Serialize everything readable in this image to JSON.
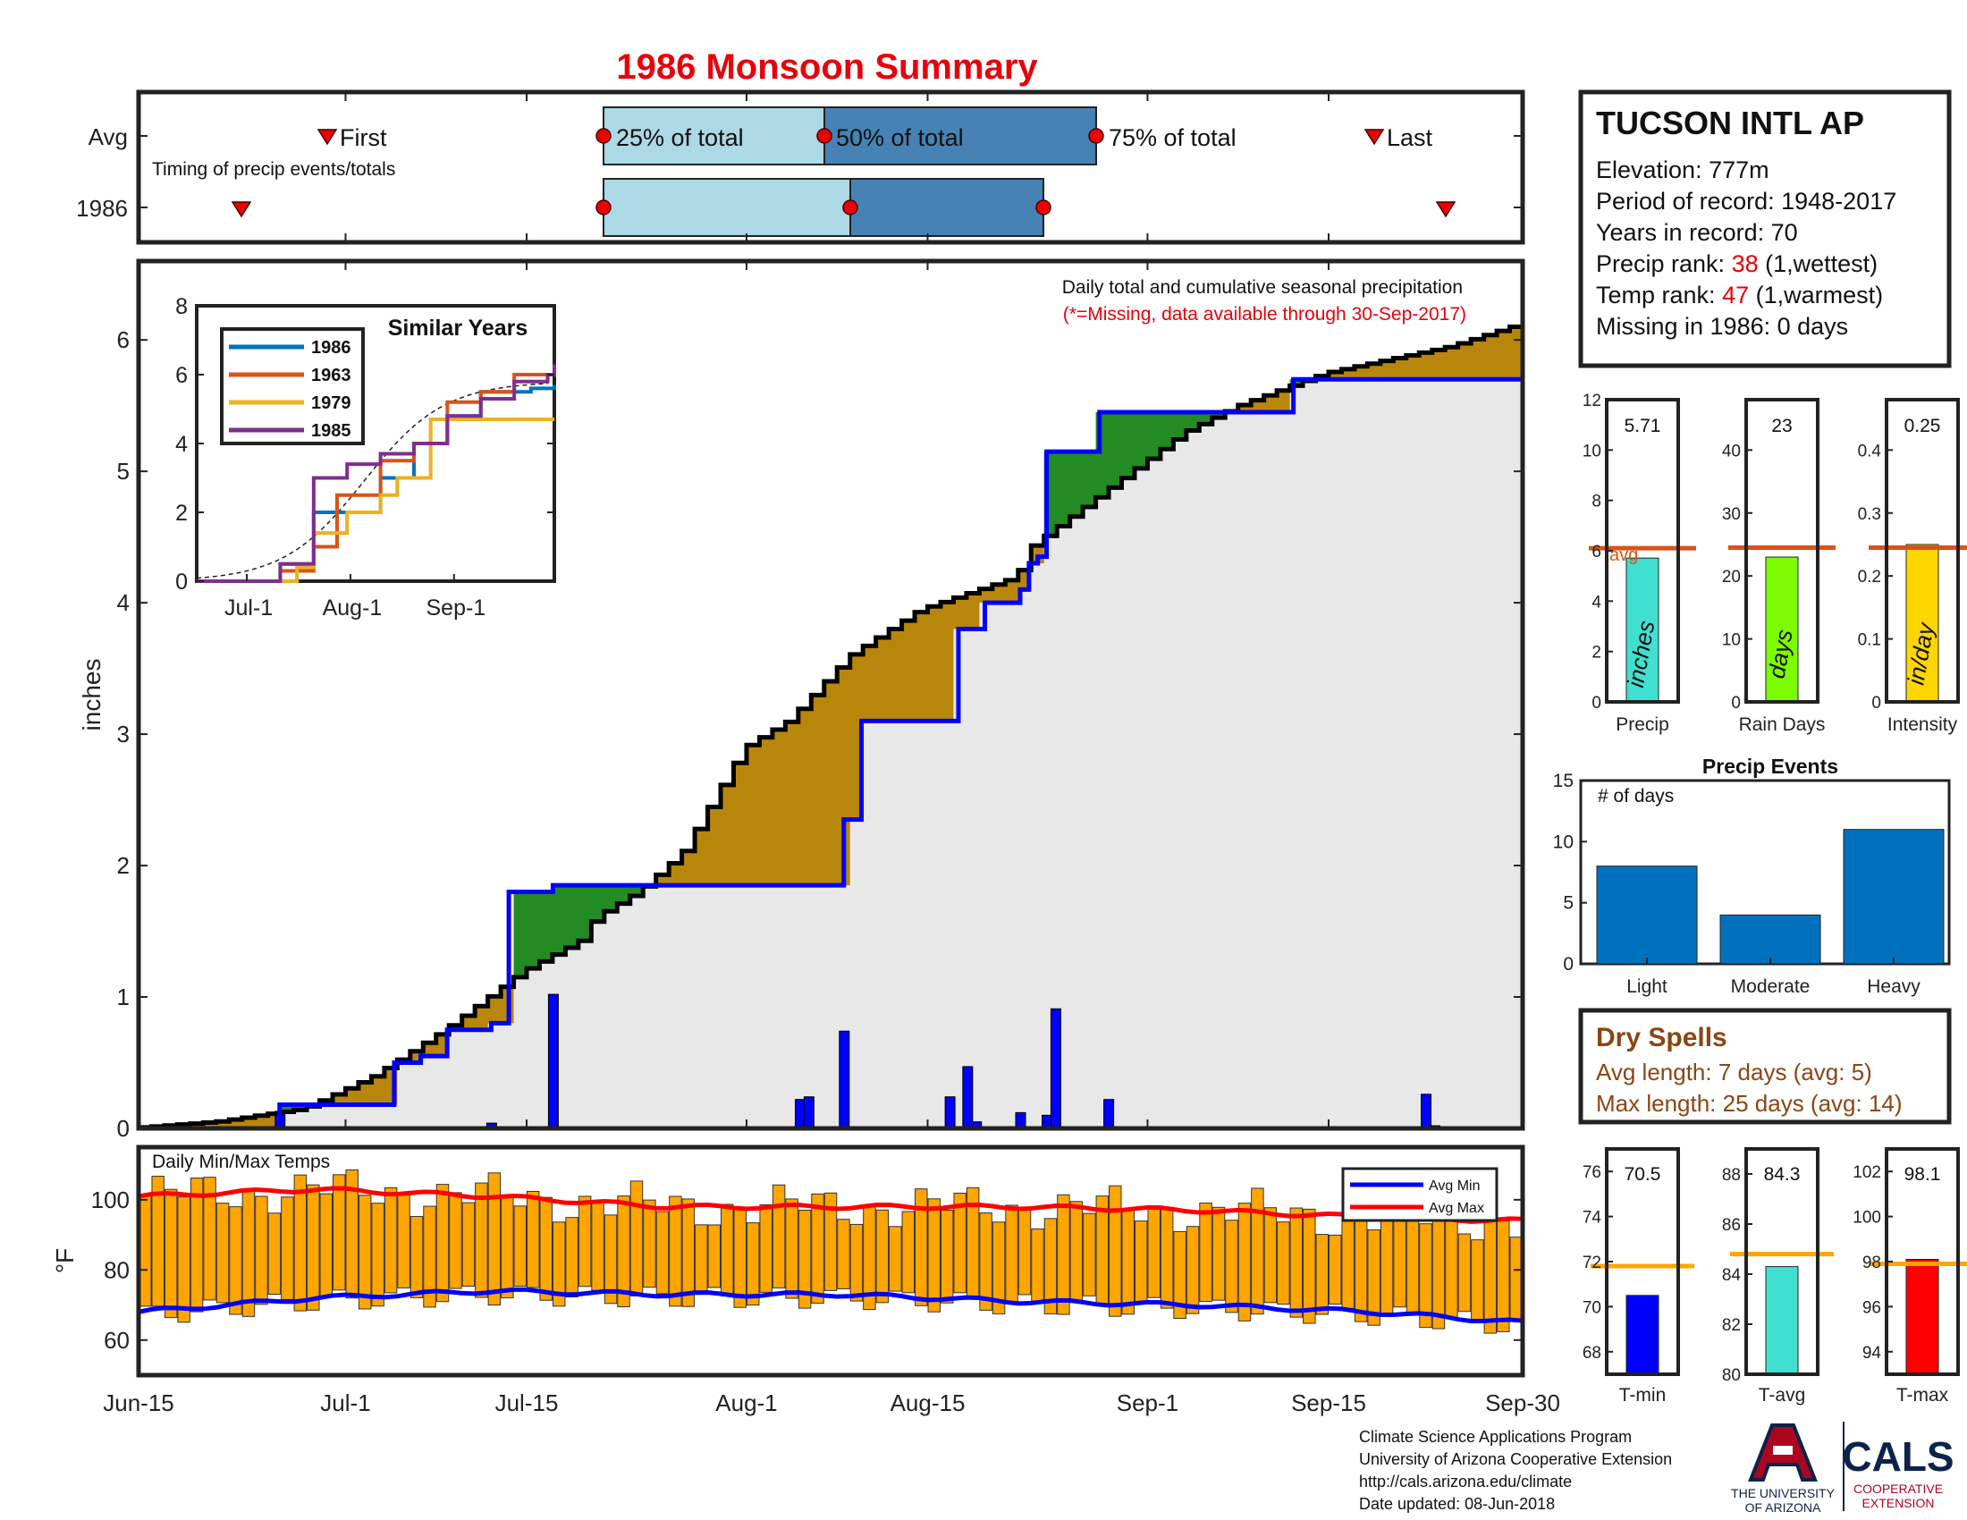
{
  "title": "1986 Monsoon Summary",
  "station": {
    "name": "TUCSON INTL AP",
    "elevation": "Elevation: 777m",
    "period": "Period of record: 1948-2017",
    "years": "Years in record: 70",
    "precip_rank_label": "Precip rank: ",
    "precip_rank_value": "38",
    "precip_rank_note": " (1,wettest)",
    "temp_rank_label": "Temp rank: ",
    "temp_rank_value": "47",
    "temp_rank_note": " (1,warmest)",
    "missing": "Missing in 1986: 0 days"
  },
  "timing": {
    "row_labels": [
      "Avg",
      "1986"
    ],
    "caption": "Timing of precip events/totals",
    "first_label": "First",
    "p25_label": "25% of total",
    "p50_label": "50% of total",
    "p75_label": "75% of total",
    "last_label": "Last"
  },
  "main": {
    "note": "Daily total and cumulative seasonal precipitation",
    "missing_note": "(*=Missing, data available through 30-Sep-2017)",
    "ylabel": "inches",
    "x_ticks": [
      "Jun-15",
      "Jul-1",
      "Jul-15",
      "Aug-1",
      "Aug-15",
      "Sep-1",
      "Sep-15",
      "Sep-30"
    ],
    "y_ticks": [
      "0",
      "1",
      "2",
      "3",
      "4",
      "5",
      "6"
    ]
  },
  "similar": {
    "title": "Similar Years",
    "legend": [
      "1986",
      "1963",
      "1979",
      "1985"
    ],
    "x_ticks": [
      "Jul-1",
      "Aug-1",
      "Sep-1"
    ],
    "y_ticks": [
      "0",
      "2",
      "4",
      "6",
      "8"
    ]
  },
  "stats": {
    "precip": {
      "value": "5.71",
      "label": "Precip",
      "unit": "inches",
      "avg_text": "avg",
      "ticks": [
        "0",
        "2",
        "4",
        "6",
        "8",
        "10",
        "12"
      ]
    },
    "raindays": {
      "value": "23",
      "label": "Rain Days",
      "unit": "days",
      "ticks": [
        "0",
        "10",
        "20",
        "30",
        "40"
      ]
    },
    "intensity": {
      "value": "0.25",
      "label": "Intensity",
      "unit": "in/day",
      "ticks": [
        "0",
        "0.1",
        "0.2",
        "0.3",
        "0.4"
      ]
    }
  },
  "events": {
    "title": "Precip Events",
    "ylabel": "# of days",
    "y_ticks": [
      "0",
      "5",
      "10",
      "15"
    ]
  },
  "dry": {
    "title": "Dry Spells",
    "avg": "Avg length: 7 days (avg: 5)",
    "max": "Max length: 25 days (avg: 14)"
  },
  "temps": {
    "label": "Daily Min/Max Temps",
    "ylabel": "°F",
    "y_ticks": [
      "60",
      "80",
      "100"
    ],
    "legend_min": "Avg Min",
    "legend_max": "Avg Max"
  },
  "temp_stats": {
    "tmin": {
      "value": "70.5",
      "label": "T-min",
      "ticks": [
        "68",
        "70",
        "72",
        "74",
        "76"
      ]
    },
    "tavg": {
      "value": "84.3",
      "label": "T-avg",
      "ticks": [
        "80",
        "82",
        "84",
        "86",
        "88"
      ]
    },
    "tmax": {
      "value": "98.1",
      "label": "T-max",
      "ticks": [
        "94",
        "96",
        "98",
        "100",
        "102"
      ]
    }
  },
  "footer": {
    "line1": "Climate Science Applications Program",
    "line2": "University of Arizona Cooperative Extension",
    "line3": "http://cals.arizona.edu/climate",
    "line4": " Date updated: 08-Jun-2018",
    "ua_line1": "THE UNIVERSITY",
    "ua_line2": "OF ARIZONA",
    "cals": "CALS",
    "cals_sub1": "COOPERATIVE",
    "cals_sub2": "EXTENSION"
  },
  "colors": {
    "title": "#e8000b",
    "above": "#b8860b",
    "below": "#228b22",
    "cum_obs": "#000000",
    "cum_avg": "#0000ff",
    "fill": "#e8e8e8",
    "avg_line": "#d95319",
    "temp_bar": "#ffa500",
    "temp_avg_max": "#ff0000",
    "temp_avg_min": "#0000ff",
    "event_bar": "#0072bd",
    "dry_text": "#8b4513"
  },
  "chart_data": [
    {
      "type": "area",
      "name": "cumulative-precip",
      "x_range": [
        "Jun-15",
        "Sep-30"
      ],
      "ylim": [
        0,
        6.6
      ],
      "observed_cumulative_knots": [
        [
          0,
          0
        ],
        [
          10,
          0.05
        ],
        [
          20,
          0.15
        ],
        [
          28,
          0.4
        ],
        [
          36,
          0.75
        ],
        [
          45,
          1.2
        ],
        [
          52,
          1.45
        ],
        [
          53,
          1.6
        ],
        [
          58,
          1.8
        ],
        [
          63,
          2.1
        ],
        [
          70,
          2.9
        ],
        [
          75,
          3.1
        ],
        [
          82,
          3.6
        ],
        [
          90,
          3.95
        ],
        [
          101,
          4.2
        ],
        [
          102,
          4.4
        ],
        [
          110,
          4.8
        ],
        [
          120,
          5.3
        ],
        [
          126,
          5.5
        ],
        [
          136,
          5.75
        ],
        [
          150,
          5.95
        ],
        [
          157,
          6.1
        ]
      ],
      "average_cumulative_steps": [
        [
          0,
          0
        ],
        [
          15,
          0
        ],
        [
          16,
          0.18
        ],
        [
          28,
          0.18
        ],
        [
          29,
          0.5
        ],
        [
          32,
          0.55
        ],
        [
          35,
          0.75
        ],
        [
          40,
          0.8
        ],
        [
          42,
          1.8
        ],
        [
          46,
          1.8
        ],
        [
          47,
          1.85
        ],
        [
          77,
          1.85
        ],
        [
          80,
          2.35
        ],
        [
          82,
          3.1
        ],
        [
          92,
          3.1
        ],
        [
          93,
          3.8
        ],
        [
          96,
          4.0
        ],
        [
          100,
          4.1
        ],
        [
          101,
          4.3
        ],
        [
          102,
          4.35
        ],
        [
          103,
          5.15
        ],
        [
          108,
          5.15
        ],
        [
          109,
          5.45
        ],
        [
          130,
          5.45
        ],
        [
          131,
          5.7
        ],
        [
          157,
          5.72
        ]
      ],
      "daily_precip": [
        [
          16,
          0.13
        ],
        [
          40,
          0.04
        ],
        [
          47,
          1.02
        ],
        [
          75,
          0.22
        ],
        [
          76,
          0.24
        ],
        [
          80,
          0.74
        ],
        [
          92,
          0.24
        ],
        [
          94,
          0.47
        ],
        [
          95,
          0.05
        ],
        [
          100,
          0.12
        ],
        [
          103,
          0.1
        ],
        [
          104,
          0.91
        ],
        [
          110,
          0.22
        ],
        [
          146,
          0.26
        ],
        [
          147,
          0.02
        ]
      ]
    },
    {
      "type": "line",
      "name": "similar-years",
      "x_ticks": [
        "Jul-1",
        "Aug-1",
        "Sep-1"
      ],
      "ylim": [
        0,
        8
      ],
      "series": [
        {
          "name": "1986",
          "x": [
            0,
            15,
            25,
            35,
            45,
            55,
            65,
            75,
            85,
            100,
            107
          ],
          "y": [
            0,
            0,
            0.5,
            2,
            2,
            3,
            4,
            4.8,
            5.5,
            5.6,
            5.7
          ]
        },
        {
          "name": "1963",
          "x": [
            0,
            15,
            25,
            35,
            42,
            55,
            65,
            75,
            85,
            95,
            107
          ],
          "y": [
            0,
            0,
            0.3,
            1,
            2.5,
            3.5,
            4,
            5.2,
            5.5,
            6,
            6
          ]
        },
        {
          "name": "1979",
          "x": [
            0,
            20,
            30,
            35,
            45,
            55,
            60,
            70,
            85,
            107
          ],
          "y": [
            0,
            0,
            0.4,
            1.4,
            2,
            2.5,
            3,
            4.7,
            4.7,
            4.7
          ]
        },
        {
          "name": "1985",
          "x": [
            0,
            15,
            25,
            35,
            45,
            55,
            65,
            75,
            85,
            95,
            105,
            107
          ],
          "y": [
            0,
            0,
            0.5,
            3,
            3.4,
            3.7,
            4,
            4.8,
            5.3,
            5.8,
            6,
            6.3
          ]
        }
      ]
    },
    {
      "type": "bar",
      "name": "season-stats",
      "categories": [
        "Precip",
        "Rain Days",
        "Intensity"
      ],
      "values": [
        5.71,
        23,
        0.25
      ],
      "averages": [
        6.1,
        24.5,
        0.245
      ],
      "ylims": [
        [
          0,
          12
        ],
        [
          0,
          48
        ],
        [
          0,
          0.48
        ]
      ]
    },
    {
      "type": "bar",
      "name": "precip-events",
      "title": "Precip Events",
      "categories": [
        "Light",
        "Moderate",
        "Heavy"
      ],
      "values": [
        8,
        4,
        11
      ],
      "ylim": [
        0,
        15
      ]
    },
    {
      "type": "bar",
      "name": "daily-temps",
      "ylim": [
        50,
        115
      ],
      "series": [
        {
          "name": "Avg Max",
          "x": [
            0,
            20,
            40,
            60,
            80,
            100,
            120,
            140,
            157
          ],
          "y": [
            101,
            103,
            101,
            98,
            98,
            98,
            97,
            95,
            94
          ]
        },
        {
          "name": "Avg Min",
          "x": [
            0,
            20,
            40,
            60,
            80,
            100,
            120,
            140,
            157
          ],
          "y": [
            68,
            72,
            74,
            73,
            73,
            71,
            70,
            68,
            65
          ]
        }
      ]
    },
    {
      "type": "bar",
      "name": "temp-stats",
      "categories": [
        "T-min",
        "T-avg",
        "T-max"
      ],
      "values": [
        70.5,
        84.3,
        98.1
      ],
      "averages": [
        71.8,
        84.8,
        97.9
      ],
      "ylims": [
        [
          67,
          77
        ],
        [
          80,
          89
        ],
        [
          93,
          103
        ]
      ]
    }
  ]
}
